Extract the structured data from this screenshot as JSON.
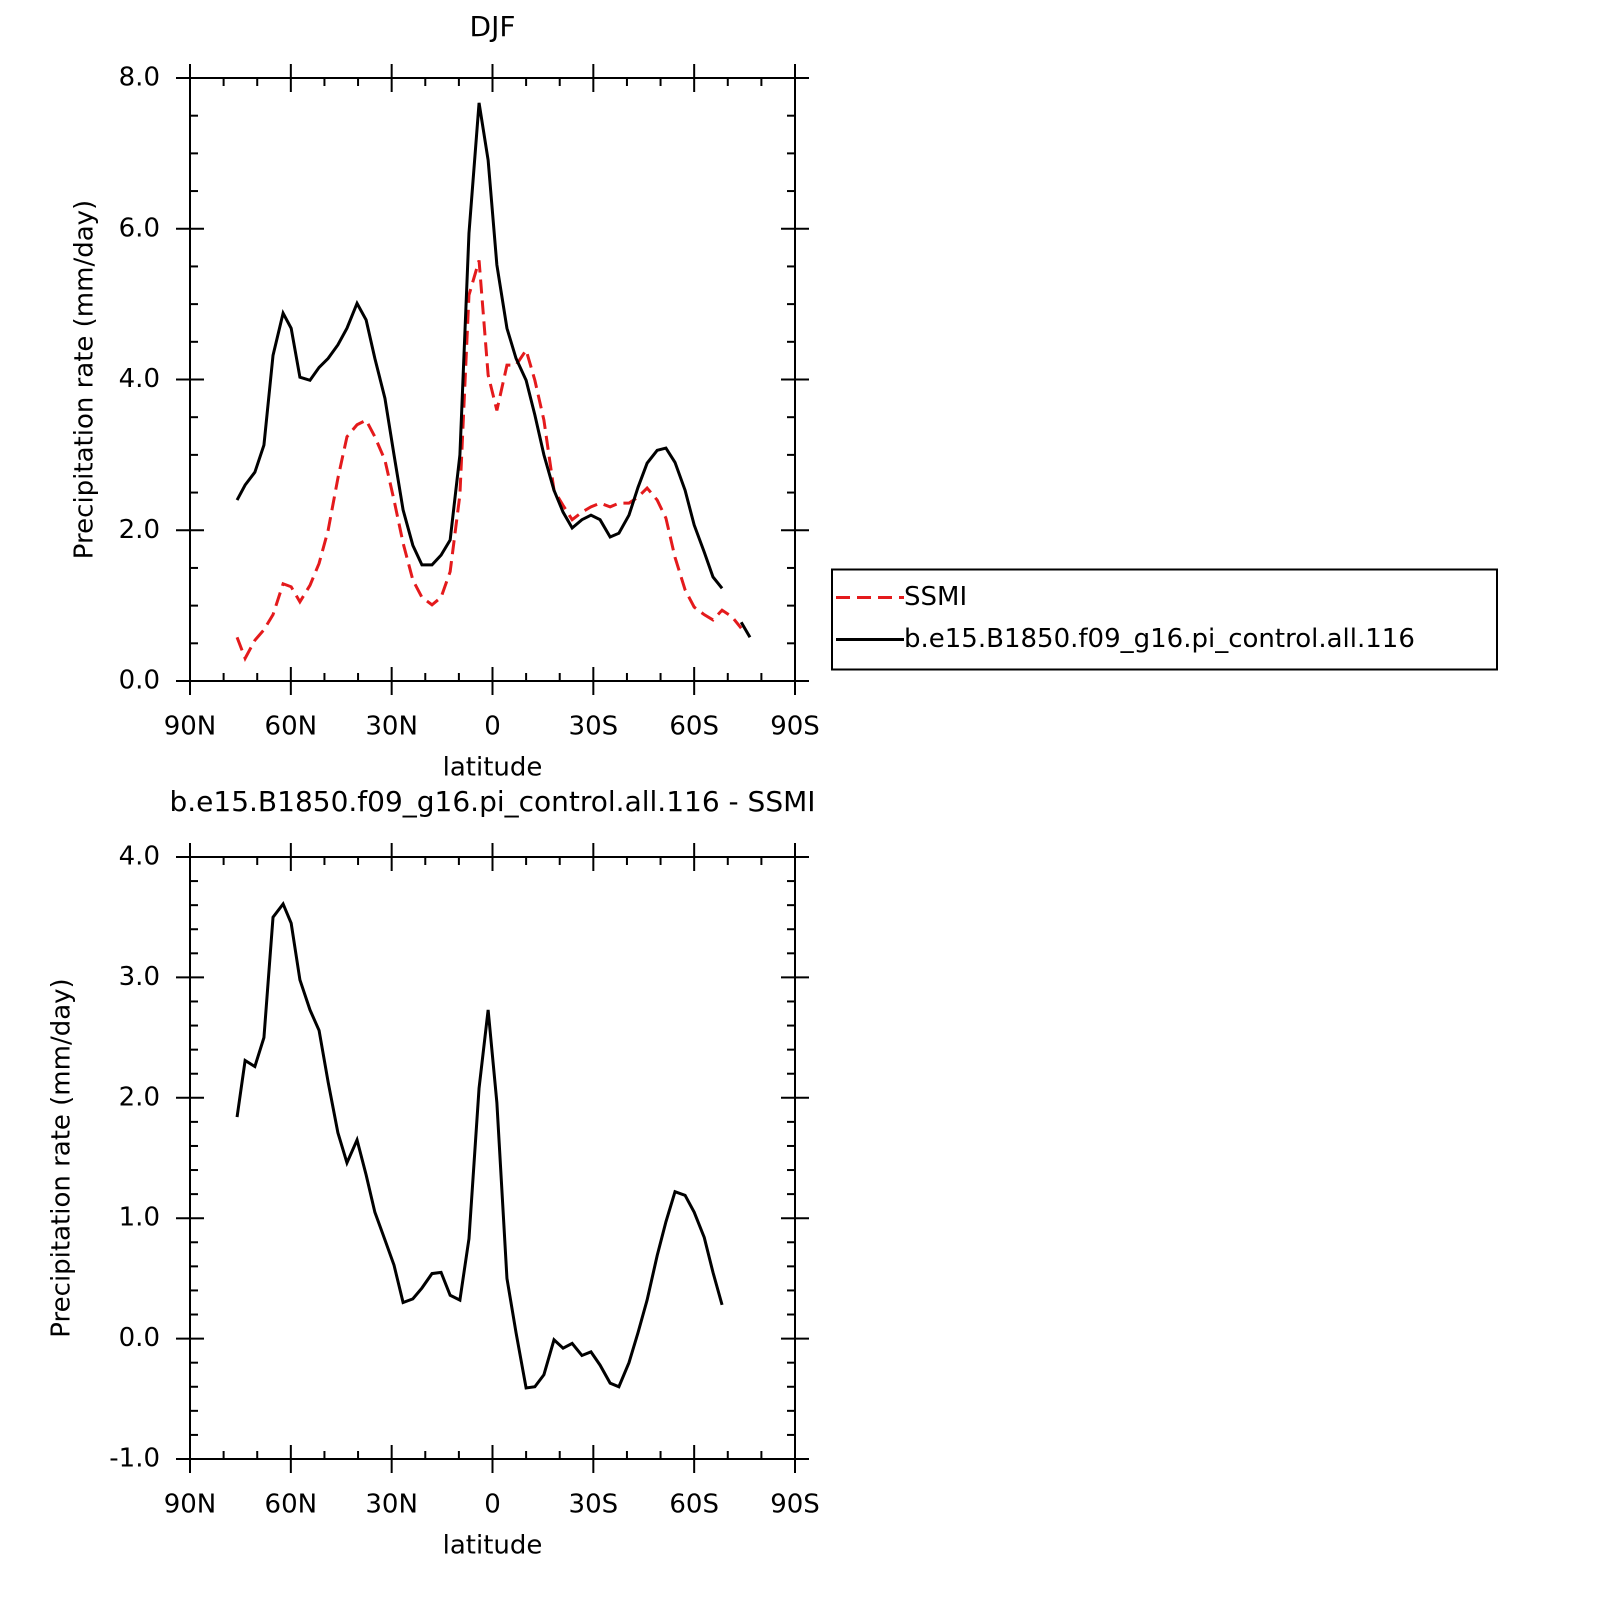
{
  "chart_data": [
    {
      "type": "line",
      "title": "DJF",
      "x_label": "latitude",
      "y_label": "Precipitation rate (mm/day)",
      "x": [
        76,
        73.6,
        70.7,
        68,
        65.3,
        62.3,
        59.9,
        57.3,
        54.3,
        51.6,
        48.9,
        46,
        43.3,
        40.3,
        37.6,
        35,
        32,
        29.3,
        26.6,
        23.7,
        21,
        18,
        15.3,
        12.6,
        9.7,
        7,
        4,
        1.3,
        -1.3,
        -4.3,
        -7,
        -10,
        -12.6,
        -15.3,
        -18.3,
        -21,
        -23.7,
        -26.6,
        -29.3,
        -32,
        -35,
        -37.6,
        -40.6,
        -43.3,
        -46,
        -49,
        -51.6,
        -54.3,
        -57.3,
        -60,
        -63,
        -65.6,
        -68.3,
        -71.3,
        -74,
        -76.6
      ],
      "series": [
        {
          "name": "SSMI",
          "color": "#e41a1c",
          "line_style": "dashed",
          "values": [
            0.58,
            0.3,
            0.54,
            0.68,
            0.88,
            1.29,
            1.25,
            1.05,
            1.27,
            1.56,
            2.0,
            2.69,
            3.24,
            3.4,
            3.46,
            3.24,
            2.93,
            2.4,
            1.83,
            1.34,
            1.11,
            1.01,
            1.11,
            1.45,
            2.47,
            5.12,
            5.58,
            4.06,
            3.59,
            4.19,
            4.19,
            4.39,
            3.99,
            3.46,
            2.53,
            2.33,
            2.14,
            2.24,
            2.31,
            2.36,
            2.31,
            2.36,
            2.36,
            2.44,
            2.56,
            2.4,
            2.16,
            1.64,
            1.21,
            0.98,
            0.88,
            0.81,
            0.94,
            0.85,
            0.7,
            null
          ]
        },
        {
          "name": "b.e15.B1850.f09_g16.pi_control.all.116",
          "color": "#000000",
          "line_style": "solid",
          "values": [
            2.4,
            2.6,
            2.77,
            3.13,
            4.32,
            4.88,
            4.68,
            4.03,
            3.99,
            4.16,
            4.28,
            4.46,
            4.68,
            5.01,
            4.79,
            4.28,
            3.75,
            3.0,
            2.27,
            1.8,
            1.54,
            1.54,
            1.67,
            1.87,
            3.0,
            5.94,
            7.67,
            6.91,
            5.52,
            4.68,
            4.28,
            3.99,
            3.53,
            3.0,
            2.53,
            2.24,
            2.03,
            2.14,
            2.2,
            2.14,
            1.91,
            1.96,
            2.2,
            2.57,
            2.89,
            3.06,
            3.09,
            2.9,
            2.53,
            2.07,
            1.71,
            1.38,
            1.23,
            null,
            0.78,
            0.58
          ]
        }
      ],
      "xlim": [
        90,
        -90
      ],
      "xticks": [
        {
          "value": 90,
          "label": "90N"
        },
        {
          "value": 60,
          "label": "60N"
        },
        {
          "value": 30,
          "label": "30N"
        },
        0,
        {
          "value": -30,
          "label": "30S"
        },
        {
          "value": -60,
          "label": "60S"
        },
        {
          "value": -90,
          "label": "90S"
        }
      ],
      "xminorticks": [
        80,
        70,
        50,
        40,
        20,
        10,
        -10,
        -20,
        -40,
        -50,
        -70,
        -80
      ],
      "ylim": [
        0,
        8
      ],
      "yticks": [
        {
          "value": 0,
          "label": "0.0"
        },
        {
          "value": 2,
          "label": "2.0"
        },
        {
          "value": 4,
          "label": "4.0"
        },
        {
          "value": 6,
          "label": "6.0"
        },
        {
          "value": 8,
          "label": "8.0"
        }
      ],
      "yminorticks": [
        0.5,
        1,
        1.5,
        2.5,
        3,
        3.5,
        4.5,
        5,
        5.5,
        6.5,
        7,
        7.5
      ],
      "legend": "right"
    },
    {
      "type": "line",
      "title": "b.e15.B1850.f09_g16.pi_control.all.116 - SSMI",
      "x_label": "latitude",
      "y_label": "Precipitation rate (mm/day)",
      "x": [
        76,
        73.6,
        70.7,
        68,
        65.3,
        62.3,
        59.9,
        57.3,
        54.3,
        51.6,
        48.9,
        46,
        43.3,
        40.3,
        37.6,
        35,
        32,
        29.3,
        26.6,
        23.7,
        21,
        18,
        15.3,
        12.6,
        9.7,
        7,
        4,
        1.3,
        -1.3,
        -4.3,
        -7,
        -10,
        -12.6,
        -15.3,
        -18.3,
        -21,
        -23.7,
        -26.6,
        -29.3,
        -32,
        -35,
        -37.6,
        -40.6,
        -43.3,
        -46,
        -49,
        -51.6,
        -54.3,
        -57.3,
        -60,
        -63,
        -65.6,
        -68.3
      ],
      "series": [
        {
          "color": "#000000",
          "line_style": "solid",
          "values": [
            1.84,
            2.31,
            2.26,
            2.5,
            3.5,
            3.61,
            3.45,
            2.98,
            2.73,
            2.56,
            2.13,
            1.71,
            1.46,
            1.65,
            1.36,
            1.05,
            0.82,
            0.61,
            0.3,
            0.33,
            0.42,
            0.54,
            0.55,
            0.36,
            0.32,
            0.83,
            2.08,
            2.73,
            1.96,
            0.5,
            0.05,
            -0.41,
            -0.4,
            -0.3,
            -0.01,
            -0.08,
            -0.04,
            -0.14,
            -0.11,
            -0.22,
            -0.37,
            -0.4,
            -0.2,
            0.05,
            0.32,
            0.69,
            0.97,
            1.22,
            1.19,
            1.05,
            0.84,
            0.55,
            0.28
          ]
        }
      ],
      "xlim": [
        90,
        -90
      ],
      "xticks": [
        {
          "value": 90,
          "label": "90N"
        },
        {
          "value": 60,
          "label": "60N"
        },
        {
          "value": 30,
          "label": "30N"
        },
        0,
        {
          "value": -30,
          "label": "30S"
        },
        {
          "value": -60,
          "label": "60S"
        },
        {
          "value": -90,
          "label": "90S"
        }
      ],
      "xminorticks": [
        80,
        70,
        50,
        40,
        20,
        10,
        -10,
        -20,
        -40,
        -50,
        -70,
        -80
      ],
      "ylim": [
        -1,
        4
      ],
      "yticks": [
        {
          "value": -1,
          "label": "-1.0"
        },
        {
          "value": 0,
          "label": "0.0"
        },
        {
          "value": 1,
          "label": "1.0"
        },
        {
          "value": 2,
          "label": "2.0"
        },
        {
          "value": 3,
          "label": "3.0"
        },
        {
          "value": 4,
          "label": "4.0"
        }
      ],
      "yminorticks": [
        -0.8,
        -0.6,
        -0.4,
        -0.2,
        0.2,
        0.4,
        0.6,
        0.8,
        1.2,
        1.4,
        1.6,
        1.8,
        2.2,
        2.4,
        2.6,
        2.8,
        3.2,
        3.4,
        3.6,
        3.8
      ]
    }
  ]
}
